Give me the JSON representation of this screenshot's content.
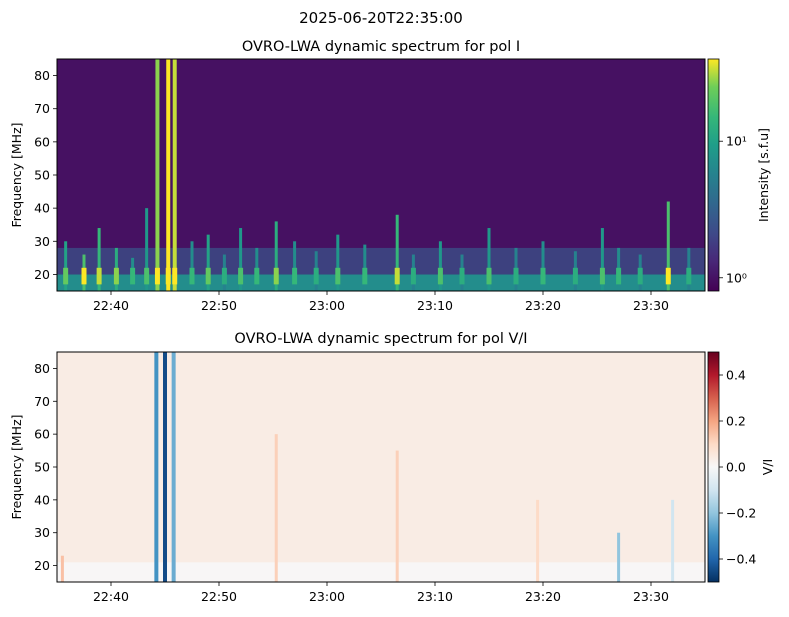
{
  "figure": {
    "suptitle": "2025-06-20T22:35:00"
  },
  "chart_data": [
    {
      "type": "heatmap",
      "title": "OVRO-LWA dynamic spectrum for pol I",
      "xlabel": "",
      "ylabel": "Frequency [MHz]",
      "x_tick_labels": [
        "22:40",
        "22:50",
        "23:00",
        "23:10",
        "23:20",
        "23:30"
      ],
      "x_tick_minutes": [
        40,
        50,
        60,
        70,
        80,
        90
      ],
      "xlim_minutes": [
        35,
        95
      ],
      "y_ticks": [
        20,
        30,
        40,
        50,
        60,
        70,
        80
      ],
      "ylim": [
        15,
        85
      ],
      "colormap": "viridis",
      "colorbar": {
        "label": "Intensity [s.f.u]",
        "scale": "log",
        "range": [
          0.8,
          40
        ],
        "tick_values": [
          1,
          10
        ],
        "tick_labels": [
          "10⁰",
          "10¹"
        ]
      },
      "background_level": 0.05,
      "low_freq_band_level": 0.55,
      "bursts": [
        {
          "t": 35.8,
          "level": 0.65,
          "top": 30
        },
        {
          "t": 37.5,
          "level": 0.8,
          "top": 26
        },
        {
          "t": 38.9,
          "level": 0.75,
          "top": 34
        },
        {
          "t": 40.5,
          "level": 0.7,
          "top": 28
        },
        {
          "t": 42.0,
          "level": 0.55,
          "top": 25
        },
        {
          "t": 43.3,
          "level": 0.6,
          "top": 40
        },
        {
          "t": 44.3,
          "level": 0.9,
          "top": 85
        },
        {
          "t": 45.3,
          "level": 1.0,
          "top": 85
        },
        {
          "t": 45.9,
          "level": 0.95,
          "top": 85
        },
        {
          "t": 47.5,
          "level": 0.55,
          "top": 30
        },
        {
          "t": 49.0,
          "level": 0.65,
          "top": 32
        },
        {
          "t": 50.5,
          "level": 0.5,
          "top": 26
        },
        {
          "t": 52.0,
          "level": 0.6,
          "top": 34
        },
        {
          "t": 53.5,
          "level": 0.55,
          "top": 28
        },
        {
          "t": 55.3,
          "level": 0.7,
          "top": 36
        },
        {
          "t": 57.0,
          "level": 0.55,
          "top": 30
        },
        {
          "t": 59.0,
          "level": 0.5,
          "top": 27
        },
        {
          "t": 61.0,
          "level": 0.6,
          "top": 32
        },
        {
          "t": 63.5,
          "level": 0.55,
          "top": 29
        },
        {
          "t": 66.5,
          "level": 0.75,
          "top": 38
        },
        {
          "t": 68.0,
          "level": 0.5,
          "top": 26
        },
        {
          "t": 70.5,
          "level": 0.6,
          "top": 30
        },
        {
          "t": 72.5,
          "level": 0.5,
          "top": 26
        },
        {
          "t": 75.0,
          "level": 0.6,
          "top": 34
        },
        {
          "t": 77.5,
          "level": 0.5,
          "top": 28
        },
        {
          "t": 80.0,
          "level": 0.55,
          "top": 30
        },
        {
          "t": 83.0,
          "level": 0.5,
          "top": 27
        },
        {
          "t": 85.5,
          "level": 0.6,
          "top": 34
        },
        {
          "t": 87.0,
          "level": 0.55,
          "top": 28
        },
        {
          "t": 89.0,
          "level": 0.5,
          "top": 26
        },
        {
          "t": 91.6,
          "level": 0.8,
          "top": 42
        },
        {
          "t": 93.5,
          "level": 0.5,
          "top": 28
        }
      ]
    },
    {
      "type": "heatmap",
      "title": "OVRO-LWA dynamic spectrum for pol V/I",
      "xlabel": "",
      "ylabel": "Frequency [MHz]",
      "x_tick_labels": [
        "22:40",
        "22:50",
        "23:00",
        "23:10",
        "23:20",
        "23:30"
      ],
      "x_tick_minutes": [
        40,
        50,
        60,
        70,
        80,
        90
      ],
      "xlim_minutes": [
        35,
        95
      ],
      "y_ticks": [
        20,
        30,
        40,
        50,
        60,
        70,
        80
      ],
      "ylim": [
        15,
        85
      ],
      "colormap": "RdBu_r",
      "colorbar": {
        "label": "V/I",
        "scale": "linear",
        "range": [
          -0.5,
          0.5
        ],
        "tick_values": [
          0.4,
          0.2,
          0.0,
          -0.2,
          -0.4
        ],
        "tick_labels": [
          "0.4",
          "0.2",
          "0.0",
          "−0.2",
          "−0.4"
        ]
      },
      "background_level": 0.04,
      "features": [
        {
          "t": 44.2,
          "value": -0.3,
          "top": 85
        },
        {
          "t": 45.0,
          "value": -0.45,
          "top": 85
        },
        {
          "t": 45.8,
          "value": -0.25,
          "top": 85
        },
        {
          "t": 35.5,
          "value": 0.15,
          "top": 23
        },
        {
          "t": 55.3,
          "value": 0.12,
          "top": 60
        },
        {
          "t": 66.5,
          "value": 0.12,
          "top": 55
        },
        {
          "t": 79.5,
          "value": 0.1,
          "top": 40
        },
        {
          "t": 87.0,
          "value": -0.2,
          "top": 30
        },
        {
          "t": 92.0,
          "value": -0.1,
          "top": 40
        }
      ]
    }
  ]
}
